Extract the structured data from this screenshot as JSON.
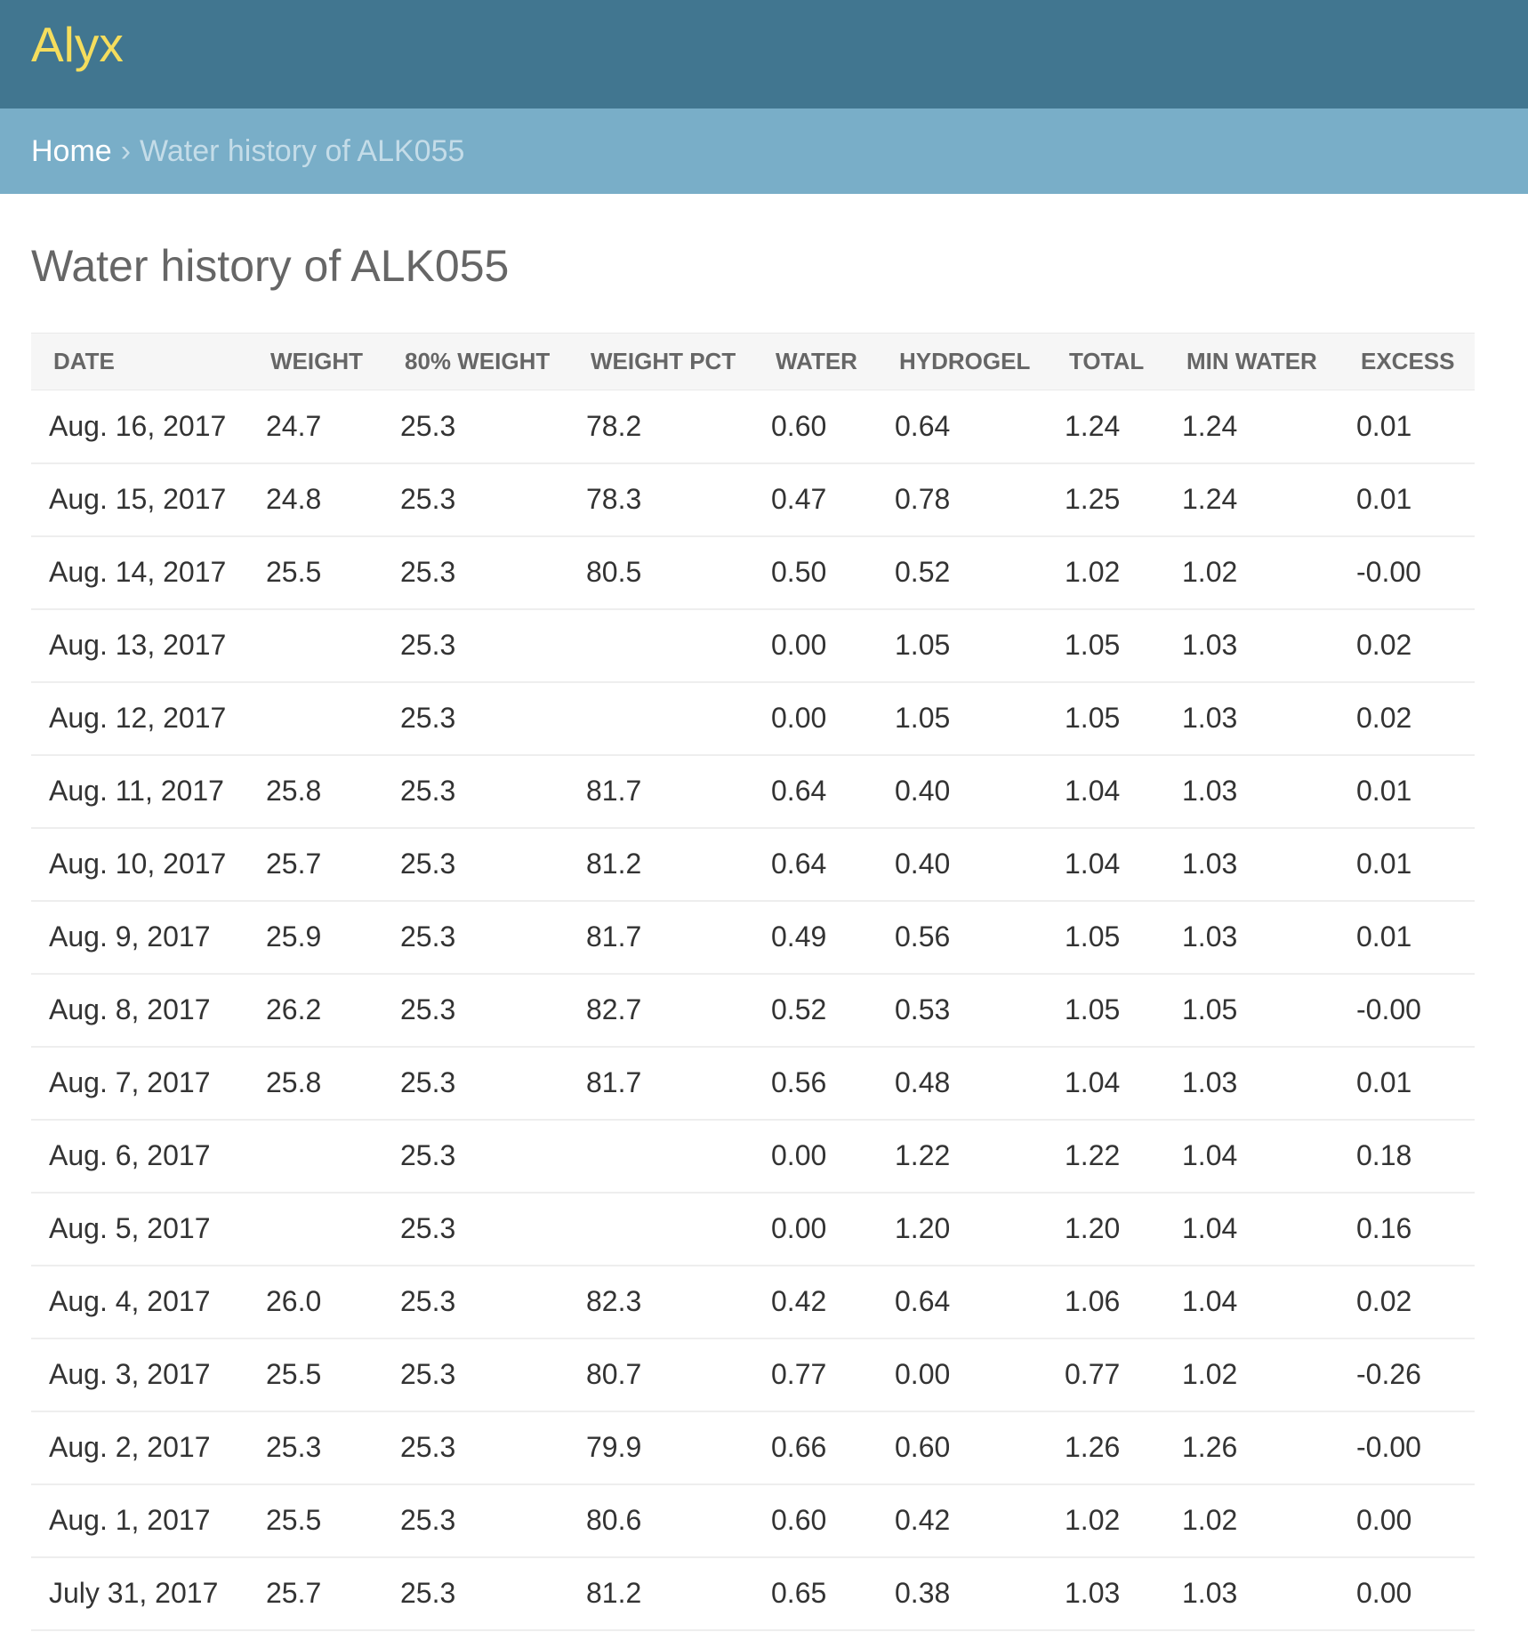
{
  "header": {
    "brand": "Alyx"
  },
  "breadcrumbs": {
    "home": "Home",
    "separator": "›",
    "current": "Water history of ALK055"
  },
  "page": {
    "title": "Water history of ALK055"
  },
  "table": {
    "columns": [
      "Date",
      "Weight",
      "80% Weight",
      "Weight PCT",
      "Water",
      "Hydrogel",
      "Total",
      "Min Water",
      "Excess"
    ],
    "rows": [
      [
        "Aug. 16, 2017",
        "24.7",
        "25.3",
        "78.2",
        "0.60",
        "0.64",
        "1.24",
        "1.24",
        "0.01"
      ],
      [
        "Aug. 15, 2017",
        "24.8",
        "25.3",
        "78.3",
        "0.47",
        "0.78",
        "1.25",
        "1.24",
        "0.01"
      ],
      [
        "Aug. 14, 2017",
        "25.5",
        "25.3",
        "80.5",
        "0.50",
        "0.52",
        "1.02",
        "1.02",
        "-0.00"
      ],
      [
        "Aug. 13, 2017",
        "",
        "25.3",
        "",
        "0.00",
        "1.05",
        "1.05",
        "1.03",
        "0.02"
      ],
      [
        "Aug. 12, 2017",
        "",
        "25.3",
        "",
        "0.00",
        "1.05",
        "1.05",
        "1.03",
        "0.02"
      ],
      [
        "Aug. 11, 2017",
        "25.8",
        "25.3",
        "81.7",
        "0.64",
        "0.40",
        "1.04",
        "1.03",
        "0.01"
      ],
      [
        "Aug. 10, 2017",
        "25.7",
        "25.3",
        "81.2",
        "0.64",
        "0.40",
        "1.04",
        "1.03",
        "0.01"
      ],
      [
        "Aug. 9, 2017",
        "25.9",
        "25.3",
        "81.7",
        "0.49",
        "0.56",
        "1.05",
        "1.03",
        "0.01"
      ],
      [
        "Aug. 8, 2017",
        "26.2",
        "25.3",
        "82.7",
        "0.52",
        "0.53",
        "1.05",
        "1.05",
        "-0.00"
      ],
      [
        "Aug. 7, 2017",
        "25.8",
        "25.3",
        "81.7",
        "0.56",
        "0.48",
        "1.04",
        "1.03",
        "0.01"
      ],
      [
        "Aug. 6, 2017",
        "",
        "25.3",
        "",
        "0.00",
        "1.22",
        "1.22",
        "1.04",
        "0.18"
      ],
      [
        "Aug. 5, 2017",
        "",
        "25.3",
        "",
        "0.00",
        "1.20",
        "1.20",
        "1.04",
        "0.16"
      ],
      [
        "Aug. 4, 2017",
        "26.0",
        "25.3",
        "82.3",
        "0.42",
        "0.64",
        "1.06",
        "1.04",
        "0.02"
      ],
      [
        "Aug. 3, 2017",
        "25.5",
        "25.3",
        "80.7",
        "0.77",
        "0.00",
        "0.77",
        "1.02",
        "-0.26"
      ],
      [
        "Aug. 2, 2017",
        "25.3",
        "25.3",
        "79.9",
        "0.66",
        "0.60",
        "1.26",
        "1.26",
        "-0.00"
      ],
      [
        "Aug. 1, 2017",
        "25.5",
        "25.3",
        "80.6",
        "0.60",
        "0.42",
        "1.02",
        "1.02",
        "0.00"
      ],
      [
        "July 31, 2017",
        "25.7",
        "25.3",
        "81.2",
        "0.65",
        "0.38",
        "1.03",
        "1.03",
        "0.00"
      ]
    ]
  },
  "colors": {
    "header_bg": "#417690",
    "brand": "#f5dd5d",
    "breadcrumbs_bg": "#79aec8"
  }
}
